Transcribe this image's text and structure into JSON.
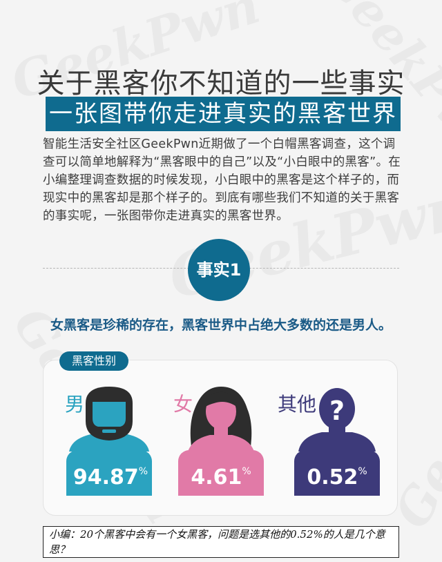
{
  "header": {
    "title": "关于黑客你不知道的一些事实",
    "subtitle": "一张图带你走进真实的黑客世界"
  },
  "intro": {
    "text": "智能生活安全社区GeekPwn近期做了一个白帽黑客调查，这个调查可以简单地解释为“黑客眼中的自己”以及“小白眼中的黑客”。在小编整理调查数据的时候发现，小白眼中的黑客是这个样子的，而现实中的黑客却是那个样子的。到底有哪些我们不知道的关于黑客的事实呢，一张图带你走进真实的黑客世界。"
  },
  "fact": {
    "badge": "事实1",
    "statement": "女黑客是珍稀的存在，黑客世界中占绝大多数的还是男人。"
  },
  "gender_card": {
    "tab_label": "黑客性别",
    "items": [
      {
        "label": "男",
        "value": "94.87",
        "unit": "%",
        "color": "#2ba3c0",
        "icon": "male-hacker-icon"
      },
      {
        "label": "女",
        "value": "4.61",
        "unit": "%",
        "color": "#e17aa7",
        "icon": "female-hacker-icon"
      },
      {
        "label": "其他",
        "value": "0.52",
        "unit": "%",
        "color": "#3d3a7a",
        "icon": "unknown-person-icon"
      }
    ]
  },
  "note": {
    "text": "小编：20个黑客中会有一个女黑客，问题是选其他的0.52%的人是几个意思？"
  },
  "watermark": "GeekPwn",
  "colors": {
    "brand_blue": "#0f6b8f",
    "fact_text": "#1a5a86",
    "hair_dark": "#2d2d2d"
  }
}
